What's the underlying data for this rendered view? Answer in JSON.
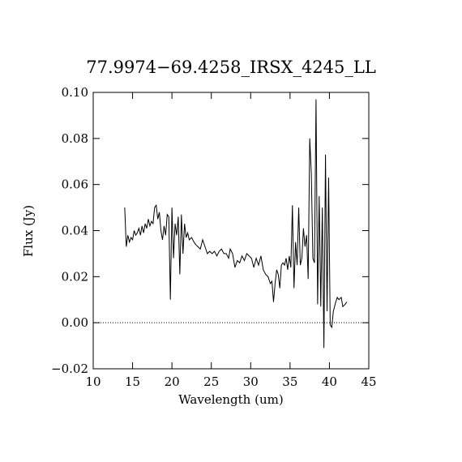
{
  "chart_data": {
    "type": "line",
    "title": "77.9974−69.4258_IRSX_4245_LL",
    "xlabel": "Wavelength (um)",
    "ylabel": "Flux (Jy)",
    "color": "#000000",
    "hline": 0,
    "xlim": [
      10,
      45
    ],
    "xticks": [
      10,
      15,
      20,
      25,
      30,
      35,
      40,
      45
    ],
    "ylim": [
      -0.02,
      0.1
    ],
    "yticks": [
      {
        "value": -0.02,
        "label": "−0.02"
      },
      {
        "value": 0,
        "label": "0.00"
      },
      {
        "value": 0.02,
        "label": "0.02"
      },
      {
        "value": 0.04,
        "label": "0.04"
      },
      {
        "value": 0.06,
        "label": "0.06"
      },
      {
        "value": 0.08,
        "label": "0.08"
      },
      {
        "value": 0.1,
        "label": "0.10"
      }
    ],
    "x": [
      14.0,
      14.2,
      14.4,
      14.6,
      14.8,
      15.0,
      15.2,
      15.4,
      15.6,
      15.8,
      16.0,
      16.2,
      16.4,
      16.6,
      16.8,
      17.0,
      17.2,
      17.4,
      17.6,
      17.8,
      18.0,
      18.2,
      18.4,
      18.6,
      18.8,
      19.0,
      19.2,
      19.4,
      19.6,
      19.8,
      20.0,
      20.2,
      20.4,
      20.6,
      20.8,
      21.0,
      21.2,
      21.4,
      21.6,
      21.8,
      22.0,
      22.2,
      22.5,
      22.8,
      23.0,
      23.3,
      23.6,
      23.9,
      24.2,
      24.5,
      24.8,
      25.1,
      25.4,
      25.7,
      26.0,
      26.3,
      26.6,
      26.9,
      27.2,
      27.4,
      27.7,
      28.0,
      28.3,
      28.6,
      28.9,
      29.2,
      29.5,
      29.8,
      30.1,
      30.4,
      30.7,
      31.0,
      31.3,
      31.6,
      31.9,
      32.2,
      32.5,
      32.7,
      32.9,
      33.1,
      33.3,
      33.5,
      33.7,
      33.9,
      34.1,
      34.3,
      34.5,
      34.7,
      34.9,
      35.1,
      35.3,
      35.5,
      35.7,
      35.9,
      36.1,
      36.3,
      36.5,
      36.7,
      36.9,
      37.1,
      37.3,
      37.5,
      37.7,
      37.9,
      38.1,
      38.3,
      38.5,
      38.7,
      38.9,
      39.1,
      39.3,
      39.5,
      39.7,
      39.9,
      40.1,
      40.3,
      40.5,
      40.8,
      41.0,
      41.2,
      41.5,
      41.7,
      42.0,
      42.2
    ],
    "values": [
      0.05,
      0.033,
      0.038,
      0.035,
      0.037,
      0.036,
      0.04,
      0.038,
      0.039,
      0.041,
      0.038,
      0.042,
      0.039,
      0.043,
      0.041,
      0.045,
      0.042,
      0.044,
      0.043,
      0.05,
      0.051,
      0.045,
      0.048,
      0.04,
      0.036,
      0.042,
      0.038,
      0.047,
      0.046,
      0.01,
      0.05,
      0.028,
      0.043,
      0.038,
      0.046,
      0.021,
      0.047,
      0.03,
      0.043,
      0.037,
      0.039,
      0.036,
      0.037,
      0.035,
      0.034,
      0.033,
      0.032,
      0.036,
      0.033,
      0.03,
      0.031,
      0.03,
      0.031,
      0.029,
      0.031,
      0.032,
      0.03,
      0.03,
      0.028,
      0.032,
      0.03,
      0.024,
      0.027,
      0.026,
      0.029,
      0.027,
      0.03,
      0.029,
      0.028,
      0.024,
      0.028,
      0.025,
      0.029,
      0.023,
      0.021,
      0.02,
      0.017,
      0.018,
      0.009,
      0.017,
      0.023,
      0.021,
      0.015,
      0.025,
      0.026,
      0.025,
      0.028,
      0.023,
      0.029,
      0.024,
      0.051,
      0.015,
      0.035,
      0.025,
      0.05,
      0.025,
      0.028,
      0.041,
      0.033,
      0.038,
      0.019,
      0.08,
      0.065,
      0.028,
      0.026,
      0.097,
      0.008,
      0.055,
      0.007,
      0.05,
      -0.011,
      0.073,
      0.005,
      0.063,
      -0.001,
      -0.002,
      0.005,
      0.009,
      0.011,
      0.01,
      0.011,
      0.007,
      0.008,
      0.009
    ]
  }
}
